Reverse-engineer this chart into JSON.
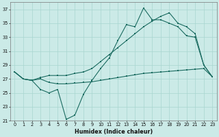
{
  "xlabel": "Humidex (Indice chaleur)",
  "bg_color": "#cbeae7",
  "grid_color": "#a8d5d0",
  "line_color": "#1a6b60",
  "xlim": [
    -0.5,
    23.5
  ],
  "ylim": [
    21,
    38
  ],
  "yticks": [
    21,
    23,
    25,
    27,
    29,
    31,
    33,
    35,
    37
  ],
  "xticks": [
    0,
    1,
    2,
    3,
    4,
    5,
    6,
    7,
    8,
    9,
    10,
    11,
    12,
    13,
    14,
    15,
    16,
    17,
    18,
    19,
    20,
    21,
    22,
    23
  ],
  "line1_x": [
    0,
    1,
    2,
    3,
    4,
    5,
    6,
    7,
    8,
    9,
    10,
    11,
    12,
    13,
    14,
    15,
    16,
    17,
    18,
    19,
    20,
    21,
    22,
    23
  ],
  "line1_y": [
    28.0,
    27.0,
    26.8,
    25.5,
    25.0,
    25.5,
    21.2,
    21.8,
    24.8,
    26.8,
    28.5,
    30.0,
    32.5,
    34.8,
    34.5,
    37.2,
    35.5,
    35.5,
    35.0,
    34.5,
    33.2,
    33.0,
    29.0,
    27.3
  ],
  "line2_x": [
    0,
    1,
    2,
    3,
    4,
    5,
    6,
    7,
    8,
    9,
    10,
    11,
    12,
    13,
    14,
    15,
    16,
    17,
    18,
    19,
    20,
    21,
    22,
    23
  ],
  "line2_y": [
    28.0,
    27.0,
    26.8,
    27.0,
    26.5,
    26.3,
    26.3,
    26.4,
    26.5,
    26.6,
    26.8,
    27.0,
    27.2,
    27.4,
    27.6,
    27.8,
    27.9,
    28.0,
    28.1,
    28.2,
    28.3,
    28.4,
    28.5,
    27.3
  ],
  "line3_x": [
    0,
    1,
    2,
    3,
    4,
    5,
    6,
    7,
    8,
    9,
    10,
    11,
    12,
    13,
    14,
    15,
    16,
    17,
    18,
    19,
    20,
    21,
    22,
    23
  ],
  "line3_y": [
    28.0,
    27.0,
    26.8,
    27.2,
    27.5,
    27.5,
    27.5,
    27.8,
    28.0,
    28.5,
    29.5,
    30.5,
    31.5,
    32.5,
    33.5,
    34.5,
    35.3,
    36.0,
    36.5,
    35.0,
    34.5,
    33.5,
    29.0,
    27.3
  ]
}
